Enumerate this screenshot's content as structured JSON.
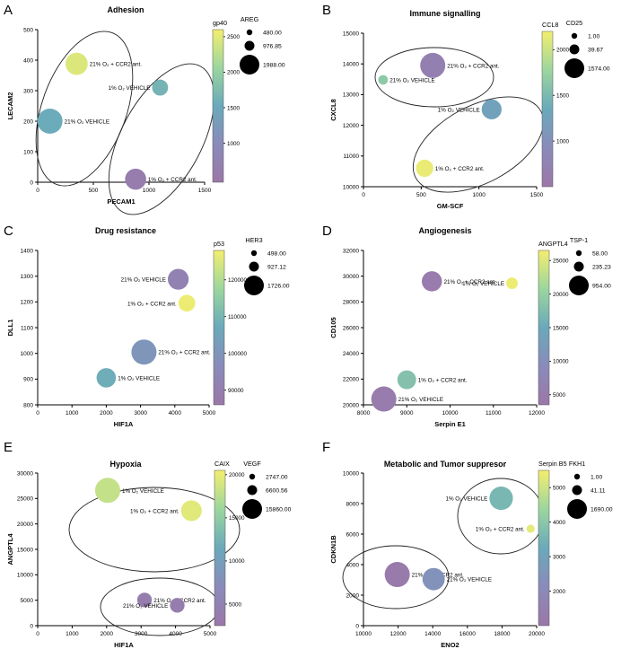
{
  "chart_data": [
    {
      "type": "scatter",
      "panel_letter": "A",
      "title": "Adhesion",
      "xlabel": "PECAM1",
      "ylabel": "LECAM2",
      "xlim": [
        0,
        1500
      ],
      "ylim": [
        0,
        500
      ],
      "xticks": [
        0,
        500,
        1000,
        1500
      ],
      "yticks": [
        0,
        100,
        200,
        300,
        400,
        500
      ],
      "color_label": "gp40",
      "color_range": [
        450,
        2600
      ],
      "color_ticks": [
        1000,
        1500,
        2000,
        2500
      ],
      "size_label": "AREG",
      "size_legend": [
        480.0,
        976.85,
        1988.0
      ],
      "points": [
        {
          "label": "21% O₂ + CCR2 ant.",
          "x": 350,
          "y": 388,
          "color": 2450,
          "size": 1400
        },
        {
          "label": "21% O₂ VEHICLE",
          "x": 110,
          "y": 200,
          "color": 1550,
          "size": 1988
        },
        {
          "label": "1% O₂ VEHICLE",
          "x": 1100,
          "y": 310,
          "color": 1650,
          "size": 480
        },
        {
          "label": "1% O₂ + CCR2 ant.",
          "x": 880,
          "y": 10,
          "color": 600,
          "size": 1200
        }
      ]
    },
    {
      "type": "scatter",
      "panel_letter": "B",
      "title": "Immune signalling",
      "xlabel": "GM-SCF",
      "ylabel": "CXCL8",
      "xlim": [
        0,
        1500
      ],
      "ylim": [
        10000,
        15000
      ],
      "xticks": [
        0,
        500,
        1000,
        1500
      ],
      "yticks": [
        10000,
        11000,
        12000,
        13000,
        14000,
        15000
      ],
      "color_label": "CCL8",
      "color_range": [
        500,
        2200
      ],
      "color_ticks": [
        1000,
        1500,
        2000
      ],
      "size_label": "CD25",
      "size_legend": [
        1.0,
        39.67,
        1574.0
      ],
      "points": [
        {
          "label": "21% O₂ + CCR2 ant.",
          "x": 600,
          "y": 13950,
          "color": 700,
          "size": 1574
        },
        {
          "label": "21% O₂ VEHICLE",
          "x": 170,
          "y": 13480,
          "color": 1650,
          "size": 30
        },
        {
          "label": "1% O₂ VEHICLE",
          "x": 1110,
          "y": 12520,
          "color": 1250,
          "size": 800
        },
        {
          "label": "1% O₂ + CCR2 ant.",
          "x": 530,
          "y": 10600,
          "color": 2150,
          "size": 500
        }
      ]
    },
    {
      "type": "scatter",
      "panel_letter": "C",
      "title": "Drug resistance",
      "xlabel": "HIF1A",
      "ylabel": "DLL1",
      "xlim": [
        0,
        5000
      ],
      "ylim": [
        800,
        1400
      ],
      "xticks": [
        0,
        1000,
        2000,
        3000,
        4000,
        5000
      ],
      "yticks": [
        800,
        900,
        1000,
        1100,
        1200,
        1300,
        1400
      ],
      "color_label": "p53",
      "color_range": [
        86000,
        128000
      ],
      "color_ticks": [
        90000,
        100000,
        110000,
        120000
      ],
      "size_label": "HER3",
      "size_legend": [
        498.0,
        927.12,
        1726.0
      ],
      "points": [
        {
          "label": "21% O₂ VEHICLE",
          "x": 4100,
          "y": 1288,
          "color": 92000,
          "size": 1000
        },
        {
          "label": "1% O₂ + CCR2 ant.",
          "x": 4350,
          "y": 1195,
          "color": 127000,
          "size": 498
        },
        {
          "label": "21% O₂ + CCR2 ant.",
          "x": 3100,
          "y": 1005,
          "color": 100000,
          "size": 1726
        },
        {
          "label": "1% O₂ VEHICLE",
          "x": 2000,
          "y": 905,
          "color": 108000,
          "size": 800
        }
      ]
    },
    {
      "type": "scatter",
      "panel_letter": "D",
      "title": "Angiogenesis",
      "xlabel": "Serpin E1",
      "ylabel": "CD105",
      "xlim": [
        8000,
        12000
      ],
      "ylim": [
        20000,
        32000
      ],
      "xticks": [
        8000,
        9000,
        10000,
        11000,
        12000
      ],
      "yticks": [
        20000,
        22000,
        24000,
        26000,
        28000,
        30000,
        32000
      ],
      "color_label": "ANGPTL4",
      "color_range": [
        3500,
        26500
      ],
      "color_ticks": [
        5000,
        10000,
        15000,
        20000,
        25000
      ],
      "size_label": "TSP-1",
      "size_legend": [
        58.0,
        235.23,
        954.0
      ],
      "points": [
        {
          "label": "21% O₂ + CCR2 ant.",
          "x": 9580,
          "y": 29600,
          "color": 5000,
          "size": 500
        },
        {
          "label": "1% O₂ VEHICLE",
          "x": 11430,
          "y": 29450,
          "color": 26000,
          "size": 58
        },
        {
          "label": "1% O₂ + CCR2 ant.",
          "x": 9000,
          "y": 21950,
          "color": 18000,
          "size": 400
        },
        {
          "label": "21% O₂ VEHICLE",
          "x": 8470,
          "y": 20450,
          "color": 5000,
          "size": 954
        }
      ]
    },
    {
      "type": "scatter",
      "panel_letter": "E",
      "title": "Hypoxia",
      "xlabel": "HIF1A",
      "ylabel": "ANGPTL4",
      "xlim": [
        0,
        5000
      ],
      "ylim": [
        0,
        30000
      ],
      "xticks": [
        0,
        1000,
        2000,
        3000,
        4000,
        5000
      ],
      "yticks": [
        0,
        5000,
        10000,
        15000,
        20000,
        25000,
        30000
      ],
      "color_label": "CAIX",
      "color_range": [
        2500,
        20500
      ],
      "color_ticks": [
        5000,
        10000,
        15000,
        20000
      ],
      "size_label": "VEGF",
      "size_legend": [
        2747.0,
        6600.56,
        15860.0
      ],
      "points": [
        {
          "label": "1% O₂ VEHICLE",
          "x": 2030,
          "y": 26600,
          "color": 18000,
          "size": 15860
        },
        {
          "label": "1% O₂ + CCR2 ant.",
          "x": 4460,
          "y": 22600,
          "color": 19500,
          "size": 9000
        },
        {
          "label": "21% O₂ + CCR2 ant.",
          "x": 3100,
          "y": 5050,
          "color": 4000,
          "size": 2747
        },
        {
          "label": "21% O₂ VEHICLE",
          "x": 4050,
          "y": 4000,
          "color": 4000,
          "size": 2747
        }
      ]
    },
    {
      "type": "scatter",
      "panel_letter": "F",
      "title": "Metabolic and Tumor suppresor",
      "xlabel": "ENO2",
      "ylabel": "CDKN1B",
      "xlim": [
        10000,
        20000
      ],
      "ylim": [
        0,
        10000
      ],
      "xticks": [
        10000,
        12000,
        14000,
        16000,
        18000,
        20000
      ],
      "yticks": [
        0,
        2000,
        4000,
        6000,
        8000,
        10000
      ],
      "color_label": "Serpin B5",
      "color_range": [
        1000,
        5500
      ],
      "color_ticks": [
        2000,
        3000,
        4000,
        5000
      ],
      "size_label": "FKH1",
      "size_legend": [
        1.0,
        41.11,
        1690.0
      ],
      "points": [
        {
          "label": "1% O₂ VEHICLE",
          "x": 17950,
          "y": 8350,
          "color": 3600,
          "size": 1400
        },
        {
          "label": "1% O₂ + CCR2 ant.",
          "x": 19650,
          "y": 6350,
          "color": 5300,
          "size": 5
        },
        {
          "label": "21% O₂ + CCR2 ant.",
          "x": 11950,
          "y": 3350,
          "color": 1200,
          "size": 1690
        },
        {
          "label": "21% O₂ VEHICLE",
          "x": 14050,
          "y": 3050,
          "color": 2400,
          "size": 1200
        }
      ]
    }
  ]
}
